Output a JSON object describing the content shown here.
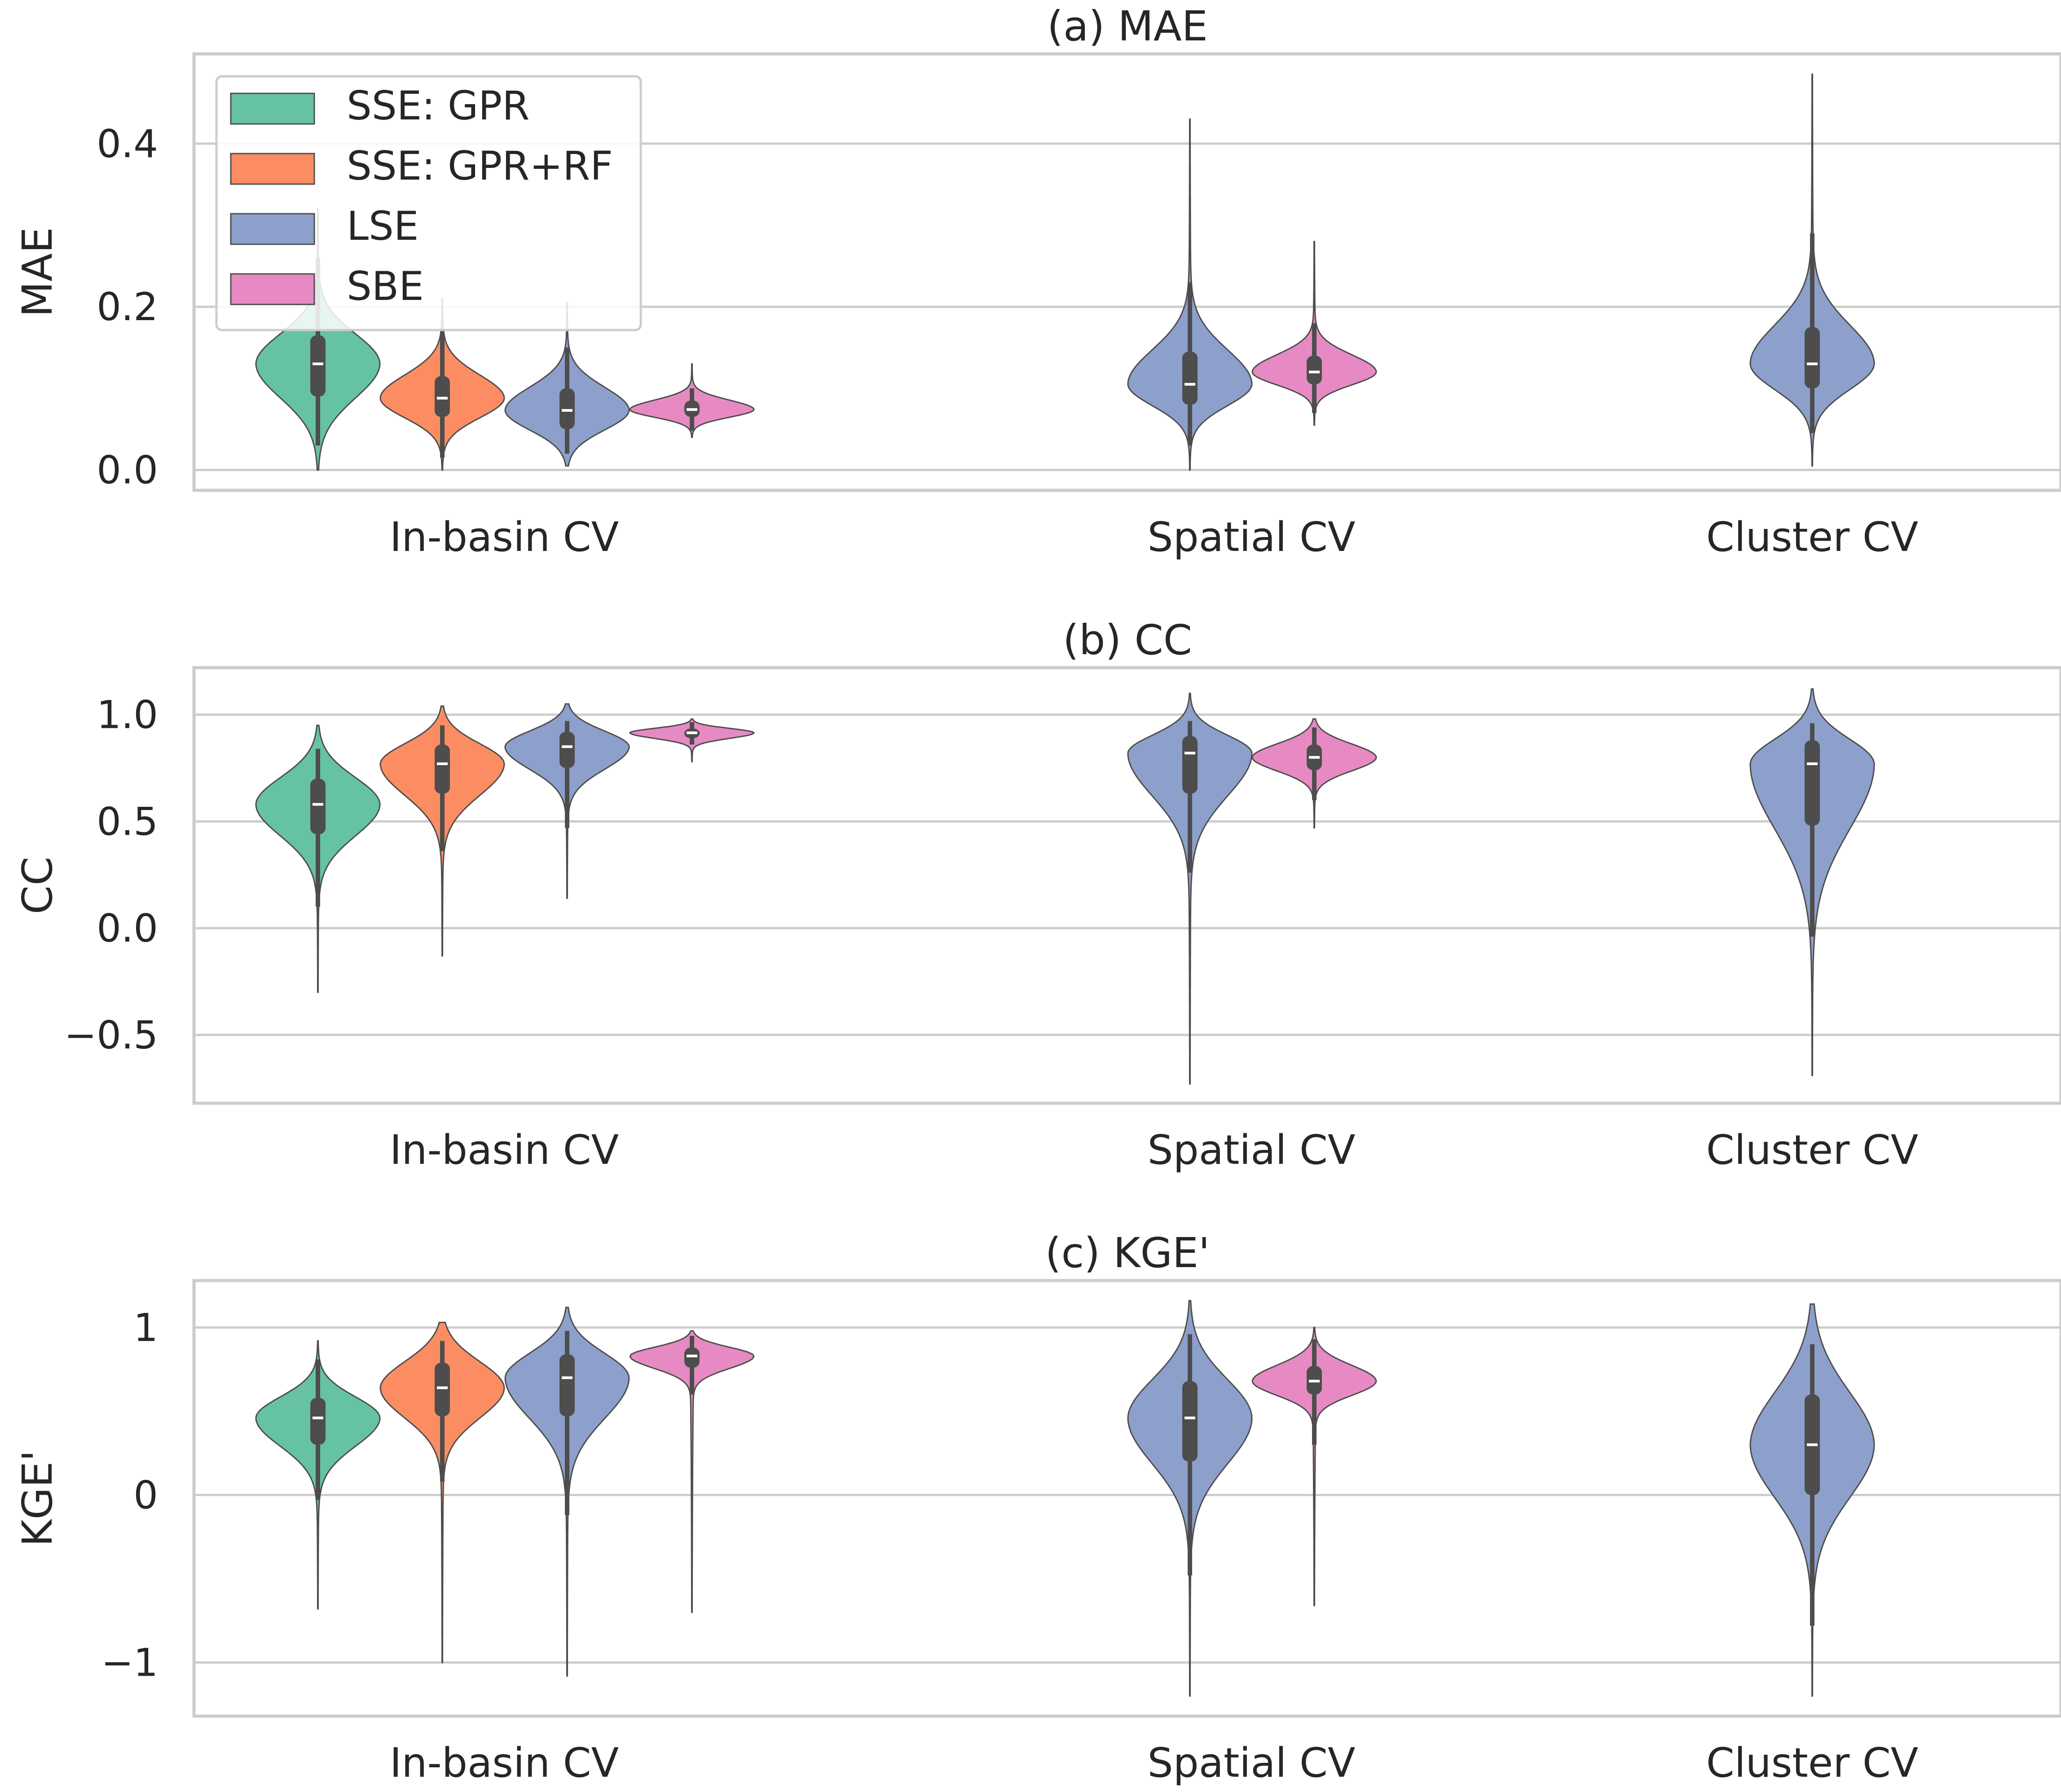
{
  "legend": {
    "position": "upper-left",
    "entries": [
      {
        "label": "SSE: GPR",
        "color": "#66c2a5"
      },
      {
        "label": "SSE: GPR+RF",
        "color": "#fc8d62"
      },
      {
        "label": "LSE",
        "color": "#8da0cb"
      },
      {
        "label": "SBE",
        "color": "#e78ac3"
      }
    ]
  },
  "style": {
    "grid_color": "#cccccc",
    "spine_color": "#cccccc",
    "text_color": "#262626",
    "box_color": "#4d4d4d",
    "median_color": "#ffffff",
    "violin_edge": "#4d4d4d"
  },
  "chart_data": [
    {
      "type": "violin",
      "title": "(a) MAE",
      "ylabel": "MAE",
      "xlabel": "",
      "categories": [
        "In-basin CV",
        "Spatial CV",
        "Cluster CV"
      ],
      "ylim": [
        -0.025,
        0.51
      ],
      "yticks": [
        0.0,
        0.2,
        0.4
      ],
      "ytick_labels": [
        "0.0",
        "0.2",
        "0.4"
      ],
      "grid": true,
      "series": [
        {
          "name": "SSE: GPR",
          "color": "#66c2a5",
          "category": "In-basin CV",
          "min": 0.0,
          "q1": 0.09,
          "median": 0.13,
          "q3": 0.165,
          "max": 0.32,
          "wlo": 0.03,
          "whi": 0.26
        },
        {
          "name": "SSE: GPR+RF",
          "color": "#fc8d62",
          "category": "In-basin CV",
          "min": 0.0,
          "q1": 0.065,
          "median": 0.088,
          "q3": 0.115,
          "max": 0.21,
          "wlo": 0.015,
          "whi": 0.17
        },
        {
          "name": "LSE",
          "color": "#8da0cb",
          "category": "In-basin CV",
          "min": 0.005,
          "q1": 0.05,
          "median": 0.073,
          "q3": 0.1,
          "max": 0.205,
          "wlo": 0.02,
          "whi": 0.15
        },
        {
          "name": "SBE",
          "color": "#e78ac3",
          "category": "In-basin CV",
          "min": 0.04,
          "q1": 0.065,
          "median": 0.074,
          "q3": 0.085,
          "max": 0.13,
          "wlo": 0.048,
          "whi": 0.1
        },
        {
          "name": "LSE",
          "color": "#8da0cb",
          "category": "Spatial CV",
          "min": 0.0,
          "q1": 0.08,
          "median": 0.105,
          "q3": 0.145,
          "max": 0.43,
          "wlo": 0.03,
          "whi": 0.23
        },
        {
          "name": "SBE",
          "color": "#e78ac3",
          "category": "Spatial CV",
          "min": 0.055,
          "q1": 0.105,
          "median": 0.12,
          "q3": 0.14,
          "max": 0.28,
          "wlo": 0.07,
          "whi": 0.18
        },
        {
          "name": "LSE",
          "color": "#8da0cb",
          "category": "Cluster CV",
          "min": 0.005,
          "q1": 0.1,
          "median": 0.13,
          "q3": 0.175,
          "max": 0.485,
          "wlo": 0.045,
          "whi": 0.29
        }
      ]
    },
    {
      "type": "violin",
      "title": "(b) CC",
      "ylabel": "CC",
      "xlabel": "",
      "categories": [
        "In-basin CV",
        "Spatial CV",
        "Cluster CV"
      ],
      "ylim": [
        -0.82,
        1.22
      ],
      "yticks": [
        -0.5,
        0.0,
        0.5,
        1.0
      ],
      "ytick_labels": [
        "−0.5",
        "0.0",
        "0.5",
        "1.0"
      ],
      "grid": true,
      "series": [
        {
          "name": "SSE: GPR",
          "color": "#66c2a5",
          "category": "In-basin CV",
          "min": -0.3,
          "q1": 0.44,
          "median": 0.58,
          "q3": 0.7,
          "max": 0.95,
          "wlo": 0.1,
          "whi": 0.84
        },
        {
          "name": "SSE: GPR+RF",
          "color": "#fc8d62",
          "category": "In-basin CV",
          "min": -0.13,
          "q1": 0.63,
          "median": 0.77,
          "q3": 0.86,
          "max": 1.04,
          "wlo": 0.36,
          "whi": 0.95
        },
        {
          "name": "LSE",
          "color": "#8da0cb",
          "category": "In-basin CV",
          "min": 0.14,
          "q1": 0.75,
          "median": 0.85,
          "q3": 0.92,
          "max": 1.05,
          "wlo": 0.47,
          "whi": 0.97
        },
        {
          "name": "SBE",
          "color": "#e78ac3",
          "category": "In-basin CV",
          "min": 0.78,
          "q1": 0.89,
          "median": 0.915,
          "q3": 0.935,
          "max": 0.98,
          "wlo": 0.86,
          "whi": 0.965
        },
        {
          "name": "LSE",
          "color": "#8da0cb",
          "category": "Spatial CV",
          "min": -0.73,
          "q1": 0.63,
          "median": 0.82,
          "q3": 0.9,
          "max": 1.1,
          "wlo": 0.26,
          "whi": 0.97
        },
        {
          "name": "SBE",
          "color": "#e78ac3",
          "category": "Spatial CV",
          "min": 0.47,
          "q1": 0.74,
          "median": 0.8,
          "q3": 0.86,
          "max": 0.98,
          "wlo": 0.6,
          "whi": 0.94
        },
        {
          "name": "LSE",
          "color": "#8da0cb",
          "category": "Cluster CV",
          "min": -0.69,
          "q1": 0.48,
          "median": 0.77,
          "q3": 0.88,
          "max": 1.12,
          "wlo": -0.04,
          "whi": 0.96
        }
      ]
    },
    {
      "type": "violin",
      "title": "(c) KGE'",
      "ylabel": "KGE'",
      "xlabel": "",
      "categories": [
        "In-basin CV",
        "Spatial CV",
        "Cluster CV"
      ],
      "ylim": [
        -1.32,
        1.28
      ],
      "yticks": [
        -1,
        0,
        1
      ],
      "ytick_labels": [
        "−1",
        "0",
        "1"
      ],
      "grid": true,
      "series": [
        {
          "name": "SSE: GPR",
          "color": "#66c2a5",
          "category": "In-basin CV",
          "min": -0.68,
          "q1": 0.3,
          "median": 0.46,
          "q3": 0.58,
          "max": 0.92,
          "wlo": -0.03,
          "whi": 0.81
        },
        {
          "name": "SSE: GPR+RF",
          "color": "#fc8d62",
          "category": "In-basin CV",
          "min": -1.0,
          "q1": 0.47,
          "median": 0.64,
          "q3": 0.79,
          "max": 1.03,
          "wlo": 0.08,
          "whi": 0.92
        },
        {
          "name": "LSE",
          "color": "#8da0cb",
          "category": "In-basin CV",
          "min": -1.08,
          "q1": 0.47,
          "median": 0.7,
          "q3": 0.84,
          "max": 1.12,
          "wlo": -0.12,
          "whi": 0.98
        },
        {
          "name": "SBE",
          "color": "#e78ac3",
          "category": "In-basin CV",
          "min": -0.7,
          "q1": 0.76,
          "median": 0.83,
          "q3": 0.88,
          "max": 0.98,
          "wlo": 0.6,
          "whi": 0.95
        },
        {
          "name": "LSE",
          "color": "#8da0cb",
          "category": "Spatial CV",
          "min": -1.2,
          "q1": 0.2,
          "median": 0.46,
          "q3": 0.68,
          "max": 1.16,
          "wlo": -0.48,
          "whi": 0.96
        },
        {
          "name": "SBE",
          "color": "#e78ac3",
          "category": "Spatial CV",
          "min": -0.66,
          "q1": 0.6,
          "median": 0.68,
          "q3": 0.77,
          "max": 1.0,
          "wlo": 0.3,
          "whi": 0.93
        },
        {
          "name": "LSE",
          "color": "#8da0cb",
          "category": "Cluster CV",
          "min": -1.2,
          "q1": 0.0,
          "median": 0.3,
          "q3": 0.6,
          "max": 1.14,
          "wlo": -0.78,
          "whi": 0.9
        }
      ]
    }
  ]
}
